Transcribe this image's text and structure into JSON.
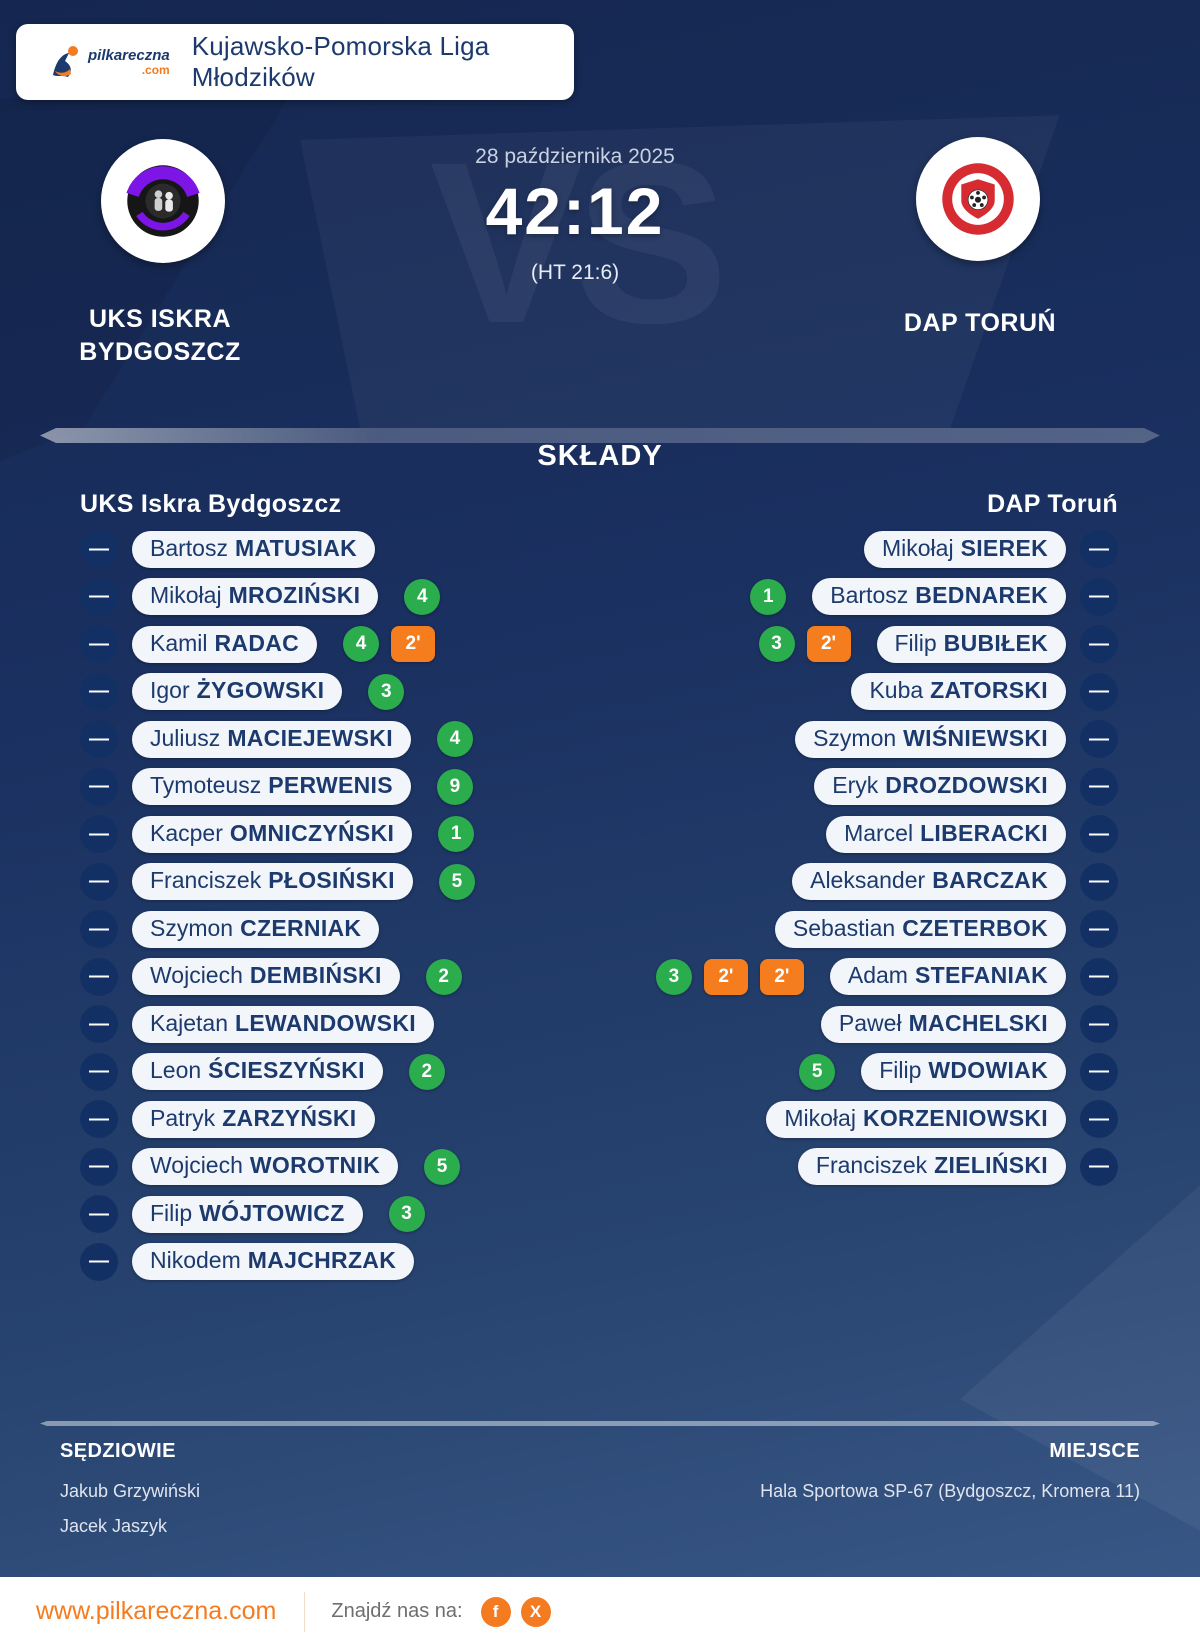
{
  "header": {
    "logo_text": "pilkareczna",
    "logo_tld": ".com",
    "league": "Kujawsko-Pomorska Liga Młodzików"
  },
  "match": {
    "date": "28 października 2025",
    "score": "42:12",
    "halftime": "(HT 21:6)",
    "vs": "VS",
    "home": {
      "name": "UKS ISKRA BYDGOSZCZ"
    },
    "away": {
      "name": "DAP TORUŃ"
    }
  },
  "lineups": {
    "title": "SKŁADY",
    "home_title": "UKS Iskra Bydgoszcz",
    "away_title": "DAP Toruń",
    "number_placeholder": "—",
    "home_players": [
      {
        "first": "Bartosz",
        "last": "MATUSIAK",
        "goals": null,
        "penalties": []
      },
      {
        "first": "Mikołaj",
        "last": "MROZIŃSKI",
        "goals": 4,
        "penalties": []
      },
      {
        "first": "Kamil",
        "last": "RADAC",
        "goals": 4,
        "penalties": [
          "2'"
        ]
      },
      {
        "first": "Igor",
        "last": "ŻYGOWSKI",
        "goals": 3,
        "penalties": []
      },
      {
        "first": "Juliusz",
        "last": "MACIEJEWSKI",
        "goals": 4,
        "penalties": []
      },
      {
        "first": "Tymoteusz",
        "last": "PERWENIS",
        "goals": 9,
        "penalties": []
      },
      {
        "first": "Kacper",
        "last": "OMNICZYŃSKI",
        "goals": 1,
        "penalties": []
      },
      {
        "first": "Franciszek",
        "last": "PŁOSIŃSKI",
        "goals": 5,
        "penalties": []
      },
      {
        "first": "Szymon",
        "last": "CZERNIAK",
        "goals": null,
        "penalties": []
      },
      {
        "first": "Wojciech",
        "last": "DEMBIŃSKI",
        "goals": 2,
        "penalties": []
      },
      {
        "first": "Kajetan",
        "last": "LEWANDOWSKI",
        "goals": null,
        "penalties": []
      },
      {
        "first": "Leon",
        "last": "ŚCIESZYŃSKI",
        "goals": 2,
        "penalties": []
      },
      {
        "first": "Patryk",
        "last": "ZARZYŃSKI",
        "goals": null,
        "penalties": []
      },
      {
        "first": "Wojciech",
        "last": "WOROTNIK",
        "goals": 5,
        "penalties": []
      },
      {
        "first": "Filip",
        "last": "WÓJTOWICZ",
        "goals": 3,
        "penalties": []
      },
      {
        "first": "Nikodem",
        "last": "MAJCHRZAK",
        "goals": null,
        "penalties": []
      }
    ],
    "away_players": [
      {
        "first": "Mikołaj",
        "last": "SIEREK",
        "goals": null,
        "penalties": []
      },
      {
        "first": "Bartosz",
        "last": "BEDNAREK",
        "goals": 1,
        "penalties": []
      },
      {
        "first": "Filip",
        "last": "BUBIŁEK",
        "goals": 3,
        "penalties": [
          "2'"
        ]
      },
      {
        "first": "Kuba",
        "last": "ZATORSKI",
        "goals": null,
        "penalties": []
      },
      {
        "first": "Szymon",
        "last": "WIŚNIEWSKI",
        "goals": null,
        "penalties": []
      },
      {
        "first": "Eryk",
        "last": "DROZDOWSKI",
        "goals": null,
        "penalties": []
      },
      {
        "first": "Marcel",
        "last": "LIBERACKI",
        "goals": null,
        "penalties": []
      },
      {
        "first": "Aleksander",
        "last": "BARCZAK",
        "goals": null,
        "penalties": []
      },
      {
        "first": "Sebastian",
        "last": "CZETERBOK",
        "goals": null,
        "penalties": []
      },
      {
        "first": "Adam",
        "last": "STEFANIAK",
        "goals": 3,
        "penalties": [
          "2'",
          "2'"
        ]
      },
      {
        "first": "Paweł",
        "last": "MACHELSKI",
        "goals": null,
        "penalties": []
      },
      {
        "first": "Filip",
        "last": "WDOWIAK",
        "goals": 5,
        "penalties": []
      },
      {
        "first": "Mikołaj",
        "last": "KORZENIOWSKI",
        "goals": null,
        "penalties": []
      },
      {
        "first": "Franciszek",
        "last": "ZIELIŃSKI",
        "goals": null,
        "penalties": []
      }
    ]
  },
  "info": {
    "referees_label": "SĘDZIOWIE",
    "referees": [
      "Jakub Grzywiński",
      "Jacek Jaszyk"
    ],
    "venue_label": "MIEJSCE",
    "venue": "Hala Sportowa SP-67 (Bydgoszcz, Kromera 11)"
  },
  "footer": {
    "website": "www.pilkareczna.com",
    "find_us": "Znajdź nas na:",
    "socials": [
      "f",
      "X"
    ]
  },
  "colors": {
    "goal_green": "#2bad4e",
    "penalty_orange": "#f67d1e",
    "brand_orange": "#f47b20",
    "navy_text": "#1c3a6d",
    "background_navy": "#1a3060"
  }
}
